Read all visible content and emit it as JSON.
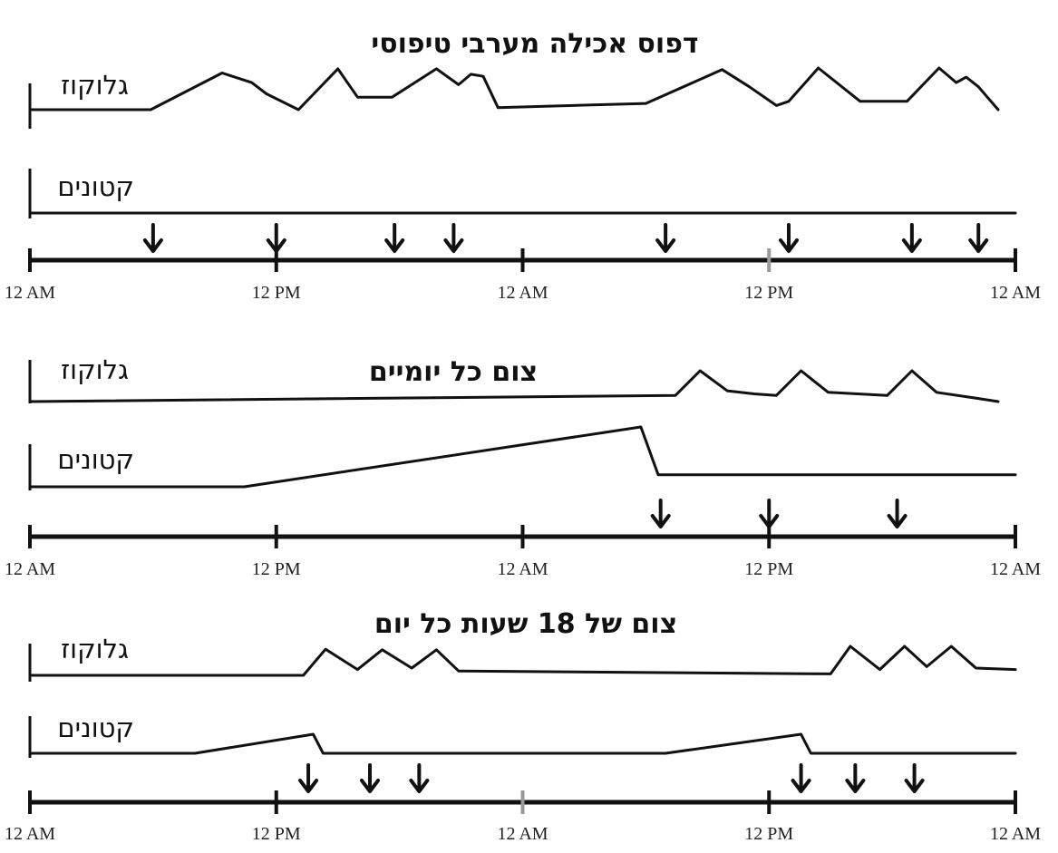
{
  "panels": [
    {
      "title": "דפוס אכילה מערבי טיפוסי",
      "glucose_label": "גלוקוז",
      "ketones_label": "קטונים",
      "time_labels": [
        "12 AM",
        "12 PM",
        "12 AM",
        "12 PM",
        "12 AM"
      ],
      "meal_times_hours": [
        5.0,
        10.0,
        14.8,
        17.2,
        25.8,
        30.8,
        35.8,
        38.5
      ],
      "glucose_curve_hours": [
        [
          0,
          0.0
        ],
        [
          4.9,
          0.0
        ],
        [
          7.8,
          0.88
        ],
        [
          9.0,
          0.65
        ],
        [
          9.6,
          0.38
        ],
        [
          10.9,
          0.0
        ],
        [
          12.5,
          0.98
        ],
        [
          13.3,
          0.3
        ],
        [
          14.7,
          0.3
        ],
        [
          16.5,
          0.98
        ],
        [
          17.4,
          0.6
        ],
        [
          17.9,
          0.85
        ],
        [
          18.4,
          0.8
        ],
        [
          19.0,
          0.05
        ],
        [
          25.0,
          0.15
        ],
        [
          28.1,
          0.96
        ],
        [
          29.2,
          0.55
        ],
        [
          30.3,
          0.1
        ],
        [
          30.8,
          0.2
        ],
        [
          32.0,
          1.0
        ],
        [
          33.7,
          0.2
        ],
        [
          35.6,
          0.2
        ],
        [
          36.9,
          1.0
        ],
        [
          37.6,
          0.65
        ],
        [
          38.0,
          0.78
        ],
        [
          38.5,
          0.55
        ],
        [
          39.3,
          0.0
        ]
      ],
      "ketone_curve_hours": [
        [
          0,
          0.0
        ],
        [
          40,
          0.0
        ]
      ],
      "axis_marker_hours": [
        30
      ]
    },
    {
      "title": "צום כל יומיים",
      "glucose_label": "גלוקוז",
      "ketones_label": "קטונים",
      "time_labels": [
        "12 AM",
        "12 PM",
        "12 AM",
        "12 PM",
        "12 AM"
      ],
      "meal_times_hours": [
        25.6,
        30.0,
        35.2
      ],
      "glucose_curve_hours": [
        [
          0,
          0.0
        ],
        [
          26.2,
          0.2
        ],
        [
          27.2,
          1.0
        ],
        [
          28.3,
          0.35
        ],
        [
          29.4,
          0.25
        ],
        [
          30.3,
          0.2
        ],
        [
          31.3,
          1.0
        ],
        [
          32.4,
          0.3
        ],
        [
          34.8,
          0.2
        ],
        [
          35.8,
          1.0
        ],
        [
          36.8,
          0.3
        ],
        [
          38.5,
          0.1
        ],
        [
          39.3,
          0.0
        ]
      ],
      "ketone_curve_hours": [
        [
          0,
          0.0
        ],
        [
          8.7,
          0.0
        ],
        [
          24.8,
          1.0
        ],
        [
          25.5,
          0.2
        ],
        [
          40,
          0.2
        ]
      ],
      "axis_marker_hours": []
    },
    {
      "title": "צום של 18 שעות כל יום",
      "glucose_label": "גלוקוז",
      "ketones_label": "קטונים",
      "time_labels": [
        "12 AM",
        "12 PM",
        "12 AM",
        "12 PM",
        "12 AM"
      ],
      "meal_times_hours": [
        11.3,
        13.8,
        15.8,
        31.3,
        33.5,
        35.9
      ],
      "glucose_curve_hours": [
        [
          0,
          0.0
        ],
        [
          11.1,
          0.0
        ],
        [
          12.0,
          0.9
        ],
        [
          13.3,
          0.2
        ],
        [
          14.3,
          0.88
        ],
        [
          15.5,
          0.25
        ],
        [
          16.5,
          0.88
        ],
        [
          17.4,
          0.15
        ],
        [
          32.5,
          0.05
        ],
        [
          33.3,
          1.0
        ],
        [
          34.5,
          0.2
        ],
        [
          35.5,
          1.0
        ],
        [
          36.4,
          0.3
        ],
        [
          37.4,
          1.0
        ],
        [
          38.4,
          0.25
        ],
        [
          40,
          0.2
        ]
      ],
      "ketone_curve_hours": [
        [
          0,
          0.0
        ],
        [
          6.7,
          0.0
        ],
        [
          11.5,
          1.0
        ],
        [
          11.9,
          0.0
        ],
        [
          25.8,
          0.0
        ],
        [
          31.3,
          1.0
        ],
        [
          31.7,
          0.0
        ],
        [
          40,
          0.0
        ]
      ],
      "axis_marker_hours": [
        20
      ]
    }
  ]
}
